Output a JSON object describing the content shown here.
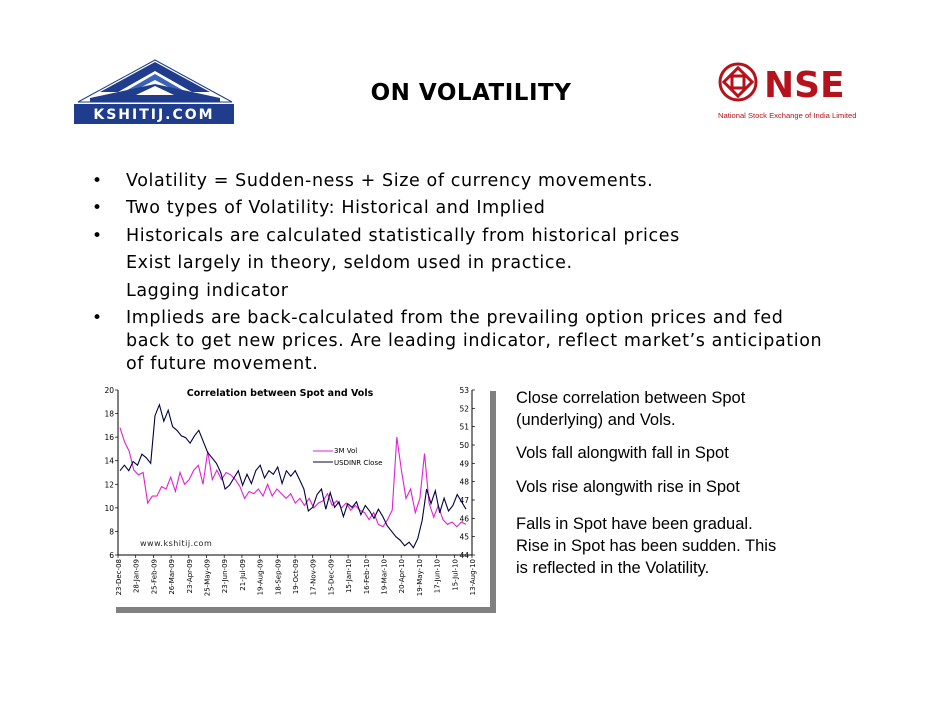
{
  "header": {
    "title": "ON VOLATILITY",
    "left_logo_text": "KSHITIJ.COM",
    "right_logo_text": "NSE",
    "right_logo_subtitle": "National Stock Exchange of India Limited",
    "brand_colors": {
      "kshitij_blue": "#1f3d8c",
      "nse_red": "#b5121b"
    }
  },
  "bullets": [
    {
      "lines": [
        "Volatility  = Sudden-ness + Size of currency movements."
      ]
    },
    {
      "lines": [
        "Two types of Volatility: Historical and Implied"
      ]
    },
    {
      "lines": [
        "Historicals are calculated statistically from historical prices",
        "Exist largely in theory, seldom used in practice.",
        "Lagging indicator"
      ]
    },
    {
      "lines": [
        "Implieds are back-calculated from the prevailing option prices and fed",
        "back to get new prices.  Are leading indicator, reflect market’s anticipation",
        "of future movement."
      ]
    }
  ],
  "chart_data": {
    "type": "line",
    "title": "Correlation between Spot and Vols",
    "watermark": "www.kshitij.com",
    "x_labels": [
      "23-Dec-08",
      "28-Jan-09",
      "25-Feb-09",
      "26-Mar-09",
      "23-Apr-09",
      "25-May-09",
      "23-Jun-09",
      "21-Jul-09",
      "19-Aug-09",
      "18-Sep-09",
      "19-Oct-09",
      "17-Nov-09",
      "15-Dec-09",
      "15-Jan-10",
      "16-Feb-10",
      "19-Mar-10",
      "20-Apr-10",
      "19-May-10",
      "17-Jun-10",
      "15-Jul-10",
      "13-Aug-10"
    ],
    "y_left": {
      "min": 6,
      "max": 20,
      "ticks": [
        "6",
        "8",
        "10",
        "12",
        "14",
        "16",
        "18",
        "20"
      ]
    },
    "y_right": {
      "min": 44,
      "max": 53,
      "ticks": [
        "44",
        "45",
        "46",
        "47",
        "48",
        "49",
        "50",
        "51",
        "52",
        "53"
      ]
    },
    "legend_placement": "center",
    "series": [
      {
        "name": "3M Vol",
        "axis": "left",
        "color": "#e020d8",
        "values": [
          16.8,
          15.6,
          14.8,
          13.2,
          12.8,
          13.0,
          10.4,
          11.0,
          11.0,
          11.8,
          11.6,
          12.6,
          11.4,
          13.0,
          12.0,
          12.4,
          13.2,
          13.6,
          12.0,
          14.8,
          12.4,
          13.2,
          12.4,
          13.0,
          12.8,
          12.4,
          11.8,
          10.8,
          11.4,
          11.2,
          11.6,
          11.0,
          12.0,
          11.0,
          11.6,
          11.2,
          10.8,
          11.2,
          10.4,
          10.8,
          10.2,
          10.8,
          10.0,
          10.4,
          10.6,
          11.2,
          10.2,
          10.6,
          10.0,
          10.4,
          9.8,
          10.2,
          9.8,
          9.6,
          9.0,
          9.6,
          8.6,
          8.4,
          9.0,
          9.8,
          16.0,
          13.2,
          10.8,
          11.6,
          9.6,
          10.8,
          14.6,
          10.4,
          9.2,
          10.2,
          9.0,
          8.6,
          8.8,
          8.4,
          8.8,
          8.6
        ]
      },
      {
        "name": "USDINR Close",
        "axis": "right",
        "color": "#000040",
        "values": [
          48.6,
          48.9,
          48.6,
          49.1,
          48.9,
          49.5,
          49.3,
          49.0,
          51.6,
          52.2,
          51.3,
          51.9,
          51.0,
          50.8,
          50.5,
          50.4,
          50.1,
          50.5,
          50.8,
          50.2,
          49.6,
          49.3,
          49.0,
          48.5,
          47.6,
          47.8,
          48.2,
          48.6,
          47.8,
          48.4,
          47.9,
          48.6,
          48.9,
          48.2,
          48.6,
          48.4,
          48.8,
          47.9,
          48.6,
          48.3,
          48.6,
          48.1,
          47.6,
          46.4,
          46.6,
          47.3,
          47.6,
          46.5,
          47.4,
          46.6,
          46.9,
          46.1,
          46.8,
          46.6,
          46.9,
          46.2,
          46.7,
          46.4,
          46.0,
          46.5,
          46.1,
          45.6,
          45.3,
          45.0,
          44.8,
          44.5,
          44.7,
          44.4,
          44.9,
          45.9,
          47.6,
          46.8,
          47.5,
          46.3,
          47.1,
          46.4,
          46.7,
          47.3,
          46.9,
          46.5
        ]
      }
    ]
  },
  "side_notes": [
    {
      "lines": [
        "Close correlation between Spot",
        "(underlying) and Vols."
      ]
    },
    {
      "lines": [
        "Vols fall alongwith fall in Spot"
      ]
    },
    {
      "lines": [
        "Vols rise alongwith rise in Spot"
      ]
    },
    {
      "lines": [
        "Falls in Spot have been gradual.",
        "Rise in Spot has been sudden. This",
        "is reflected in the Volatility."
      ]
    }
  ]
}
